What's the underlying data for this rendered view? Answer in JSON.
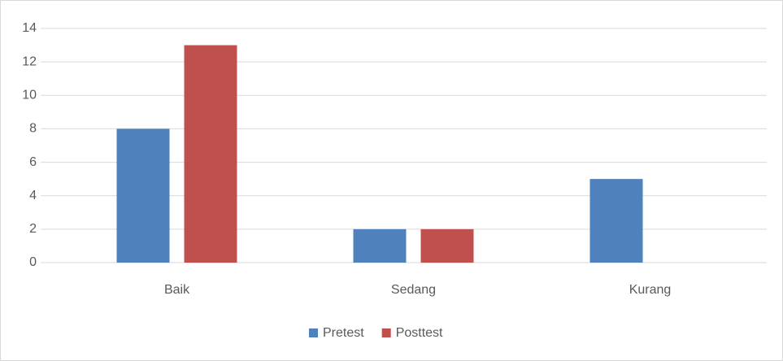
{
  "chart_data": {
    "type": "bar",
    "categories": [
      "Baik",
      "Sedang",
      "Kurang"
    ],
    "series": [
      {
        "name": "Pretest",
        "color": "#4f81bd",
        "values": [
          8,
          2,
          5
        ]
      },
      {
        "name": "Posttest",
        "color": "#c0504d",
        "values": [
          13,
          2,
          0
        ]
      }
    ],
    "ylim": [
      0,
      14
    ],
    "yticks": [
      0,
      2,
      4,
      6,
      8,
      10,
      12,
      14
    ],
    "grid": true,
    "legend": "bottom"
  }
}
